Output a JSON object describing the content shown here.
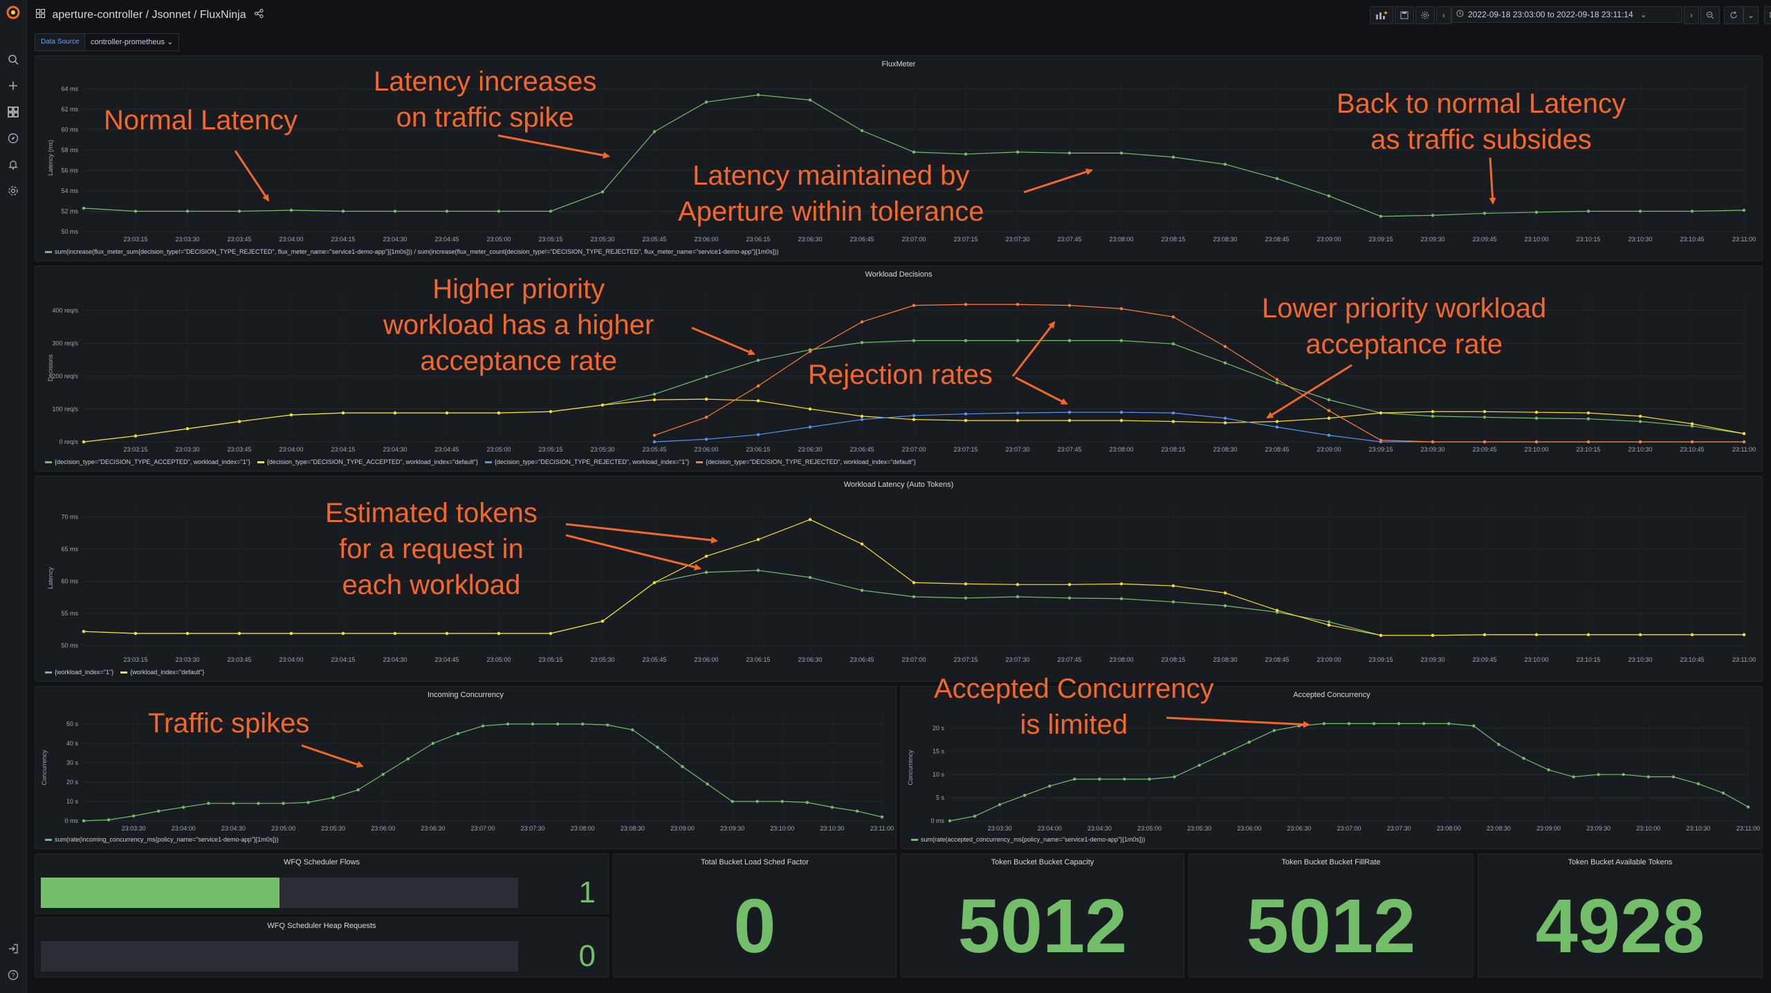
{
  "breadcrumb": {
    "folder": "aperture-controller",
    "sep": " / ",
    "path": "Jsonnet / FluxNinja"
  },
  "toolbar": {
    "time_range": "2022-09-18 23:03:00 to 2022-09-18 23:11:14"
  },
  "variables": {
    "datasource_label": "Data Source",
    "datasource_value": "controller-prometheus"
  },
  "colors": {
    "green": "#73bf69",
    "yellow": "#fade2a",
    "blue": "#5794f2",
    "orange": "#ff7f32",
    "annotation": "#f2682a"
  },
  "panels": {
    "fluxmeter": {
      "title": "FluxMeter",
      "ylabel": "Latency (ms)",
      "yticks": [
        "50 ms",
        "52 ms",
        "54 ms",
        "56 ms",
        "58 ms",
        "60 ms",
        "62 ms",
        "64 ms"
      ],
      "xticks": [
        "23:03:15",
        "23:03:30",
        "23:03:45",
        "23:04:00",
        "23:04:15",
        "23:04:30",
        "23:04:45",
        "23:05:00",
        "23:05:15",
        "23:05:30",
        "23:05:45",
        "23:06:00",
        "23:06:15",
        "23:06:30",
        "23:06:45",
        "23:07:00",
        "23:07:15",
        "23:07:30",
        "23:07:45",
        "23:08:00",
        "23:08:15",
        "23:08:30",
        "23:08:45",
        "23:09:00",
        "23:09:15",
        "23:09:30",
        "23:09:45",
        "23:10:00",
        "23:10:15",
        "23:10:30",
        "23:10:45",
        "23:11:00"
      ],
      "legend": [
        "sum(increase(flux_meter_sum{decision_type!=\"DECISION_TYPE_REJECTED\", flux_meter_name=\"service1-demo-app\"}[1m0s])) / sum(increase(flux_meter_count{decision_type!=\"DECISION_TYPE_REJECTED\", flux_meter_name=\"service1-demo-app\"}[1m0s]))"
      ]
    },
    "workload_decisions": {
      "title": "Workload Decisions",
      "ylabel": "Decisions",
      "yticks": [
        "0 req/s",
        "100 req/s",
        "200 req/s",
        "300 req/s",
        "400 req/s"
      ],
      "legend": [
        "{decision_type=\"DECISION_TYPE_ACCEPTED\", workload_index=\"1\"}",
        "{decision_type=\"DECISION_TYPE_ACCEPTED\", workload_index=\"default\"}",
        "{decision_type=\"DECISION_TYPE_REJECTED\", workload_index=\"1\"}",
        "{decision_type=\"DECISION_TYPE_REJECTED\", workload_index=\"default\"}"
      ]
    },
    "workload_latency": {
      "title": "Workload Latency (Auto Tokens)",
      "ylabel": "Latency",
      "yticks": [
        "50 ms",
        "55 ms",
        "60 ms",
        "65 ms",
        "70 ms"
      ],
      "legend": [
        "{workload_index=\"1\"}",
        "{workload_index=\"default\"}"
      ]
    },
    "incoming_concurrency": {
      "title": "Incoming Concurrency",
      "ylabel": "Concurrency",
      "yticks": [
        "0 ms",
        "10 s",
        "20 s",
        "30 s",
        "40 s",
        "50 s"
      ],
      "xticks": [
        "23:03:30",
        "23:04:00",
        "23:04:30",
        "23:05:00",
        "23:05:30",
        "23:06:00",
        "23:06:30",
        "23:07:00",
        "23:07:30",
        "23:08:00",
        "23:08:30",
        "23:09:00",
        "23:09:30",
        "23:10:00",
        "23:10:30",
        "23:11:00"
      ],
      "legend": [
        "sum(rate(incoming_concurrency_ms{policy_name=\"service1-demo-app\"}[1m0s]))"
      ]
    },
    "accepted_concurrency": {
      "title": "Accepted Concurrency",
      "ylabel": "Concurrency",
      "yticks": [
        "0 ms",
        "5 s",
        "10 s",
        "15 s",
        "20 s"
      ],
      "legend": [
        "sum(rate(accepted_concurrency_ms{policy_name=\"service1-demo-app\"}[1m0s]))"
      ]
    },
    "wfq_flows": {
      "title": "WFQ Scheduler Flows",
      "value": "1",
      "fraction": 0.5
    },
    "wfq_heap": {
      "title": "WFQ Scheduler Heap Requests",
      "value": "0",
      "fraction": 0
    },
    "load_sched": {
      "title": "Total Bucket Load Sched Factor",
      "value": "0"
    },
    "bucket_capacity": {
      "title": "Token Bucket Bucket Capacity",
      "value": "5012"
    },
    "bucket_fillrate": {
      "title": "Token Bucket Bucket FillRate",
      "value": "5012"
    },
    "available_tokens": {
      "title": "Token Bucket Available Tokens",
      "value": "4928"
    }
  },
  "chart_data": [
    {
      "type": "line",
      "title": "FluxMeter",
      "ylabel": "Latency (ms)",
      "ylim": [
        50,
        64.5
      ],
      "x": [
        "23:03:00",
        "23:03:15",
        "23:03:30",
        "23:03:45",
        "23:04:00",
        "23:04:15",
        "23:04:30",
        "23:04:45",
        "23:05:00",
        "23:05:15",
        "23:05:30",
        "23:05:45",
        "23:06:00",
        "23:06:15",
        "23:06:30",
        "23:06:45",
        "23:07:00",
        "23:07:15",
        "23:07:30",
        "23:07:45",
        "23:08:00",
        "23:08:15",
        "23:08:30",
        "23:08:45",
        "23:09:00",
        "23:09:15",
        "23:09:30",
        "23:09:45",
        "23:10:00",
        "23:10:15",
        "23:10:30",
        "23:10:45",
        "23:11:00"
      ],
      "series": [
        {
          "name": "sum(increase(flux_meter_sum{decision_type!=\"DECISION_TYPE_REJECTED\", flux_meter_name=\"service1-demo-app\"}[1m0s])) / sum(increase(flux_meter_count{decision_type!=\"DECISION_TYPE_REJECTED\", flux_meter_name=\"service1-demo-app\"}[1m0s]))",
          "values": [
            52.3,
            52.0,
            52.0,
            52.0,
            52.1,
            52.0,
            52.0,
            52.0,
            52.0,
            52.0,
            53.9,
            59.8,
            62.7,
            63.4,
            62.9,
            59.9,
            57.8,
            57.6,
            57.8,
            57.7,
            57.7,
            57.3,
            56.6,
            55.2,
            53.5,
            51.5,
            51.6,
            51.8,
            51.9,
            52.0,
            52.0,
            52.0,
            52.1
          ]
        }
      ]
    },
    {
      "type": "line",
      "title": "Workload Decisions",
      "ylabel": "Decisions",
      "ylim": [
        0,
        450
      ],
      "x": [
        "23:03:00",
        "23:03:15",
        "23:03:30",
        "23:03:45",
        "23:04:00",
        "23:04:15",
        "23:04:30",
        "23:04:45",
        "23:05:00",
        "23:05:15",
        "23:05:30",
        "23:05:45",
        "23:06:00",
        "23:06:15",
        "23:06:30",
        "23:06:45",
        "23:07:00",
        "23:07:15",
        "23:07:30",
        "23:07:45",
        "23:08:00",
        "23:08:15",
        "23:08:30",
        "23:08:45",
        "23:09:00",
        "23:09:15",
        "23:09:30",
        "23:09:45",
        "23:10:00",
        "23:10:15",
        "23:10:30",
        "23:10:45",
        "23:11:00"
      ],
      "series": [
        {
          "name": "{decision_type=\"DECISION_TYPE_ACCEPTED\", workload_index=\"1\"}",
          "values": [
            0,
            18,
            40,
            62,
            82,
            88,
            88,
            88,
            88,
            92,
            112,
            145,
            198,
            248,
            280,
            302,
            308,
            308,
            308,
            308,
            308,
            298,
            240,
            180,
            128,
            88,
            78,
            75,
            72,
            70,
            62,
            48,
            25
          ]
        },
        {
          "name": "{decision_type=\"DECISION_TYPE_ACCEPTED\", workload_index=\"default\"}",
          "values": [
            0,
            18,
            40,
            62,
            82,
            88,
            88,
            88,
            88,
            92,
            112,
            128,
            130,
            125,
            100,
            78,
            68,
            65,
            65,
            65,
            65,
            62,
            58,
            62,
            72,
            88,
            92,
            92,
            90,
            88,
            78,
            55,
            25
          ]
        },
        {
          "name": "{decision_type=\"DECISION_TYPE_REJECTED\", workload_index=\"1\"}",
          "values": [
            null,
            null,
            null,
            null,
            null,
            null,
            null,
            null,
            null,
            null,
            null,
            0,
            8,
            22,
            45,
            68,
            80,
            85,
            88,
            90,
            90,
            88,
            72,
            45,
            20,
            0,
            0,
            0,
            0,
            0,
            0,
            0,
            0
          ]
        },
        {
          "name": "{decision_type=\"DECISION_TYPE_REJECTED\", workload_index=\"default\"}",
          "values": [
            null,
            null,
            null,
            null,
            null,
            null,
            null,
            null,
            null,
            null,
            null,
            20,
            75,
            170,
            275,
            365,
            415,
            418,
            418,
            415,
            405,
            380,
            290,
            190,
            95,
            5,
            0,
            0,
            0,
            0,
            0,
            0,
            0
          ]
        }
      ]
    },
    {
      "type": "line",
      "title": "Workload Latency (Auto Tokens)",
      "ylabel": "Latency",
      "ylim": [
        49,
        72
      ],
      "x": [
        "23:03:00",
        "23:03:15",
        "23:03:30",
        "23:03:45",
        "23:04:00",
        "23:04:15",
        "23:04:30",
        "23:04:45",
        "23:05:00",
        "23:05:15",
        "23:05:30",
        "23:05:45",
        "23:06:00",
        "23:06:15",
        "23:06:30",
        "23:06:45",
        "23:07:00",
        "23:07:15",
        "23:07:30",
        "23:07:45",
        "23:08:00",
        "23:08:15",
        "23:08:30",
        "23:08:45",
        "23:09:00",
        "23:09:15",
        "23:09:30",
        "23:09:45",
        "23:10:00",
        "23:10:15",
        "23:10:30",
        "23:10:45",
        "23:11:00"
      ],
      "series": [
        {
          "name": "{workload_index=\"1\"}",
          "values": [
            52.2,
            51.9,
            51.9,
            51.9,
            51.9,
            51.9,
            51.9,
            51.9,
            51.9,
            51.9,
            53.8,
            59.8,
            61.4,
            61.7,
            60.6,
            58.6,
            57.6,
            57.4,
            57.6,
            57.4,
            57.3,
            56.8,
            56.2,
            55.2,
            53.7,
            51.6,
            51.6,
            51.7,
            51.7,
            51.7,
            51.7,
            51.7,
            51.7
          ]
        },
        {
          "name": "{workload_index=\"default\"}",
          "values": [
            52.2,
            51.9,
            51.9,
            51.9,
            51.9,
            51.9,
            51.9,
            51.9,
            51.9,
            51.9,
            53.8,
            59.8,
            63.9,
            66.5,
            69.6,
            65.8,
            59.8,
            59.6,
            59.5,
            59.5,
            59.6,
            59.3,
            58.2,
            55.5,
            53.2,
            51.6,
            51.6,
            51.7,
            51.7,
            51.7,
            51.7,
            51.7,
            51.7
          ]
        }
      ]
    },
    {
      "type": "line",
      "title": "Incoming Concurrency",
      "ylabel": "Concurrency",
      "ylim": [
        0,
        55
      ],
      "x": [
        "23:03:00",
        "23:03:15",
        "23:03:30",
        "23:03:45",
        "23:04:00",
        "23:04:15",
        "23:04:30",
        "23:04:45",
        "23:05:00",
        "23:05:15",
        "23:05:30",
        "23:05:45",
        "23:06:00",
        "23:06:15",
        "23:06:30",
        "23:06:45",
        "23:07:00",
        "23:07:15",
        "23:07:30",
        "23:07:45",
        "23:08:00",
        "23:08:15",
        "23:08:30",
        "23:08:45",
        "23:09:00",
        "23:09:15",
        "23:09:30",
        "23:09:45",
        "23:10:00",
        "23:10:15",
        "23:10:30",
        "23:10:45",
        "23:11:00"
      ],
      "series": [
        {
          "name": "sum(rate(incoming_concurrency_ms{policy_name=\"service1-demo-app\"}[1m0s]))",
          "values": [
            0,
            0.5,
            2.5,
            5,
            7,
            9,
            9,
            9,
            9,
            9.5,
            12,
            16,
            24,
            32,
            40,
            45,
            49,
            50,
            50,
            50,
            50,
            49.5,
            47,
            38,
            28,
            19,
            10,
            10,
            10,
            9.5,
            7,
            5,
            2
          ]
        }
      ]
    },
    {
      "type": "line",
      "title": "Accepted Concurrency",
      "ylabel": "Concurrency",
      "ylim": [
        0,
        23
      ],
      "x": [
        "23:03:00",
        "23:03:15",
        "23:03:30",
        "23:03:45",
        "23:04:00",
        "23:04:15",
        "23:04:30",
        "23:04:45",
        "23:05:00",
        "23:05:15",
        "23:05:30",
        "23:05:45",
        "23:06:00",
        "23:06:15",
        "23:06:30",
        "23:06:45",
        "23:07:00",
        "23:07:15",
        "23:07:30",
        "23:07:45",
        "23:08:00",
        "23:08:15",
        "23:08:30",
        "23:08:45",
        "23:09:00",
        "23:09:15",
        "23:09:30",
        "23:09:45",
        "23:10:00",
        "23:10:15",
        "23:10:30",
        "23:10:45",
        "23:11:00"
      ],
      "series": [
        {
          "name": "sum(rate(accepted_concurrency_ms{policy_name=\"service1-demo-app\"}[1m0s]))",
          "values": [
            0,
            1,
            3.5,
            5.5,
            7.5,
            9,
            9,
            9,
            9,
            9.5,
            12,
            14.5,
            17,
            19.5,
            20.5,
            21,
            21,
            21,
            21,
            21,
            21,
            20.5,
            16.5,
            13.5,
            11,
            9.5,
            10,
            10,
            9.5,
            9.5,
            8,
            6,
            3
          ]
        }
      ]
    }
  ],
  "annotations": [
    {
      "id": "a1",
      "text": "Normal Latency"
    },
    {
      "id": "a2",
      "text": "Latency increases\non traffic spike"
    },
    {
      "id": "a3",
      "text": "Latency maintained by\nAperture within tolerance"
    },
    {
      "id": "a4",
      "text": "Back to normal Latency\nas traffic subsides"
    },
    {
      "id": "a5",
      "text": "Higher priority\nworkload has a higher\nacceptance rate"
    },
    {
      "id": "a6",
      "text": "Lower priority workload\nacceptance rate"
    },
    {
      "id": "a7",
      "text": "Rejection rates"
    },
    {
      "id": "a8",
      "text": "Estimated tokens\nfor a request in\neach workload"
    },
    {
      "id": "a9",
      "text": "Traffic spikes"
    },
    {
      "id": "a10",
      "text": "Accepted Concurrency\nis limited"
    }
  ]
}
